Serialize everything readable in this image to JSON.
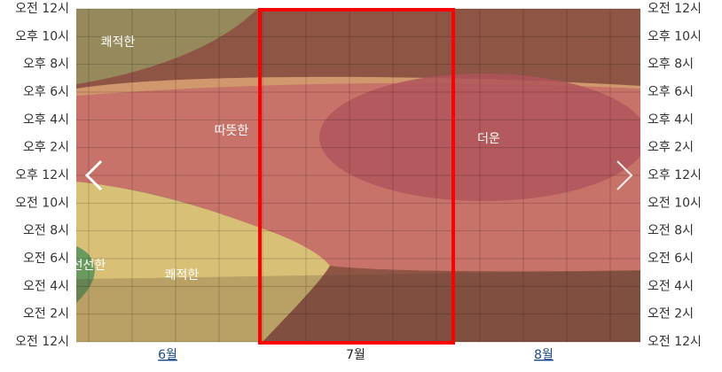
{
  "chart_data": {
    "type": "band",
    "categories": [
      "6월",
      "7월",
      "8월"
    ],
    "ylim": [
      0,
      24
    ],
    "yticks": [
      {
        "value": 24,
        "label": "오전 12시"
      },
      {
        "value": 22,
        "label": "오후 10시"
      },
      {
        "value": 20,
        "label": "오후 8시"
      },
      {
        "value": 18,
        "label": "오후 6시"
      },
      {
        "value": 16,
        "label": "오후 4시"
      },
      {
        "value": 14,
        "label": "오후 2시"
      },
      {
        "value": 12,
        "label": "오후 12시"
      },
      {
        "value": 10,
        "label": "오전 10시"
      },
      {
        "value": 8,
        "label": "오전 8시"
      },
      {
        "value": 6,
        "label": "오전 6시"
      },
      {
        "value": 4,
        "label": "오전 4시"
      },
      {
        "value": 2,
        "label": "오전 2시"
      },
      {
        "value": 0,
        "label": "오전 12시"
      }
    ],
    "annotations": [
      "쾌적한",
      "따뜻한",
      "더운",
      "선선한",
      "쾌적한"
    ],
    "grid": true
  }
}
